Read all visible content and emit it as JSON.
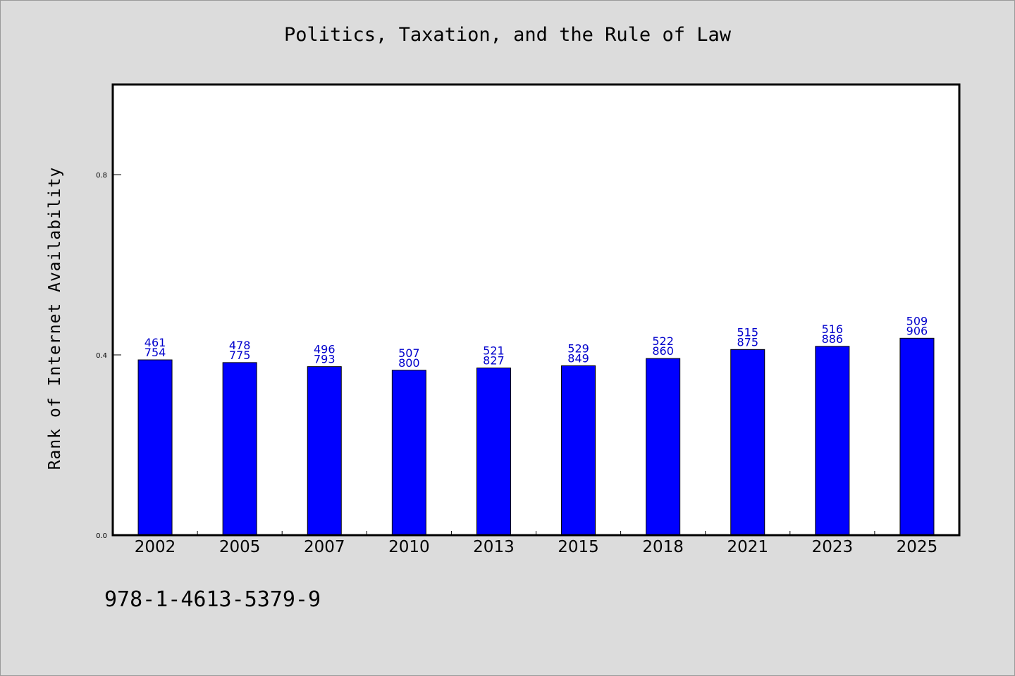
{
  "chart_data": {
    "type": "bar",
    "title": "Politics, Taxation, and the Rule of Law",
    "ylabel": "Rank of Internet Availability",
    "xlabel": "",
    "categories": [
      "2002",
      "2005",
      "2007",
      "2010",
      "2013",
      "2015",
      "2018",
      "2021",
      "2023",
      "2025"
    ],
    "values": [
      0.389,
      0.383,
      0.374,
      0.366,
      0.371,
      0.376,
      0.392,
      0.412,
      0.419,
      0.437
    ],
    "data_labels": [
      [
        "461",
        "754"
      ],
      [
        "478",
        "775"
      ],
      [
        "496",
        "793"
      ],
      [
        "507",
        "800"
      ],
      [
        "521",
        "827"
      ],
      [
        "529",
        "849"
      ],
      [
        "522",
        "860"
      ],
      [
        "515",
        "875"
      ],
      [
        "516",
        "886"
      ],
      [
        "509",
        "906"
      ]
    ],
    "yticks": [
      "0.0",
      "0.4",
      "0.8"
    ],
    "ylim": [
      0,
      1.0
    ],
    "grid": false,
    "legend": "none",
    "bar_color": "#0000ff",
    "label_color": "#0000cc"
  },
  "footer": {
    "code": "978-1-4613-5379-9"
  }
}
